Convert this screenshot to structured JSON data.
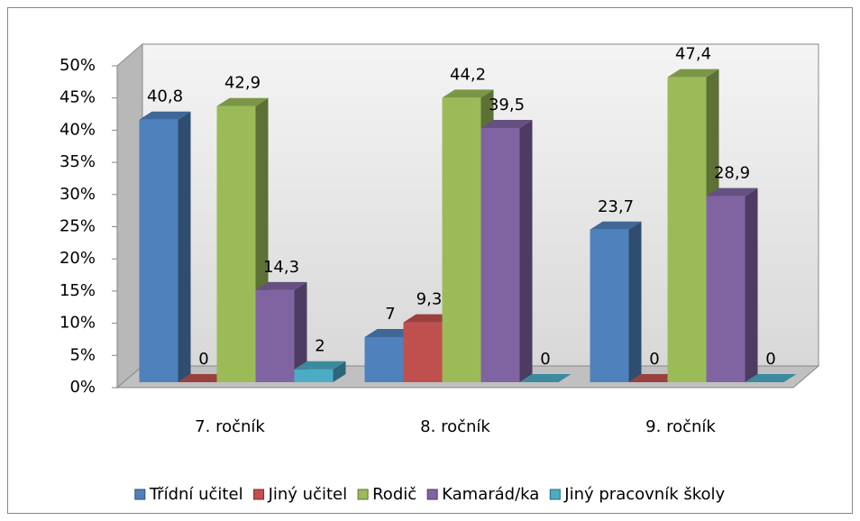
{
  "chart_data": {
    "type": "bar3d",
    "categories": [
      "7. ročník",
      "8. ročník",
      "9. ročník"
    ],
    "series": [
      {
        "name": "Třídní učitel",
        "color": "#4f81bd",
        "values": [
          40.8,
          7,
          23.7
        ],
        "value_labels": [
          "40,8",
          "7",
          "23,7"
        ]
      },
      {
        "name": "Jiný učitel",
        "color": "#c0504d",
        "values": [
          0,
          9.3,
          0
        ],
        "value_labels": [
          "0",
          "9,3",
          "0"
        ]
      },
      {
        "name": "Rodič",
        "color": "#9bbb59",
        "values": [
          42.9,
          44.2,
          47.4
        ],
        "value_labels": [
          "42,9",
          "44,2",
          "47,4"
        ]
      },
      {
        "name": "Kamarád/ka",
        "color": "#8064a2",
        "values": [
          14.3,
          39.5,
          28.9
        ],
        "value_labels": [
          "14,3",
          "39,5",
          "28,9"
        ]
      },
      {
        "name": "Jiný pracovník školy",
        "color": "#4bacc6",
        "values": [
          2,
          0,
          0
        ],
        "value_labels": [
          "2",
          "0",
          "0"
        ]
      }
    ],
    "ylim": [
      0,
      50
    ],
    "yticks": [
      {
        "value": 0,
        "label": "0%"
      },
      {
        "value": 5,
        "label": "5%"
      },
      {
        "value": 10,
        "label": "10%"
      },
      {
        "value": 15,
        "label": "15%"
      },
      {
        "value": 20,
        "label": "20%"
      },
      {
        "value": 25,
        "label": "25%"
      },
      {
        "value": 30,
        "label": "30%"
      },
      {
        "value": 35,
        "label": "35%"
      },
      {
        "value": 40,
        "label": "40%"
      },
      {
        "value": 45,
        "label": "45%"
      },
      {
        "value": 50,
        "label": "50%"
      }
    ],
    "legend": "bottom"
  }
}
